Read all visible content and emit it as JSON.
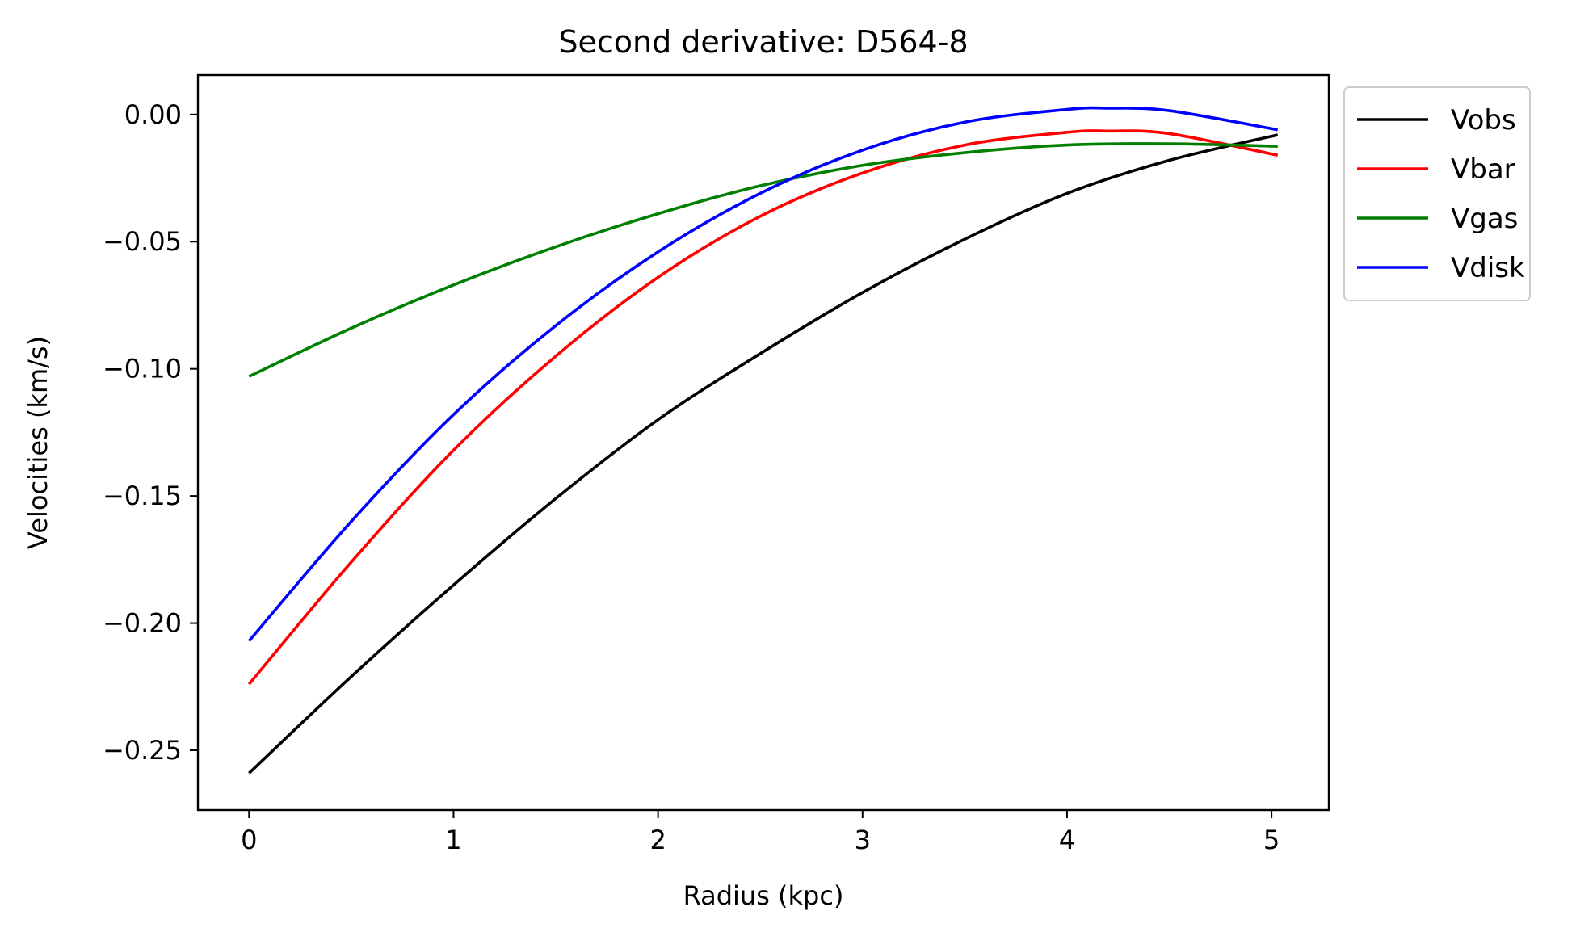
{
  "chart_data": {
    "type": "line",
    "title": "Second derivative: D564-8",
    "xlabel": "Radius (kpc)",
    "ylabel": "Velocities (km/s)",
    "xlim": [
      -0.25,
      5.28
    ],
    "ylim": [
      -0.2735,
      0.0155
    ],
    "xticks": [
      0,
      1,
      2,
      3,
      4,
      5
    ],
    "xtick_labels": [
      "0",
      "1",
      "2",
      "3",
      "4",
      "5"
    ],
    "yticks": [
      0.0,
      -0.05,
      -0.1,
      -0.15,
      -0.2,
      -0.25
    ],
    "ytick_labels": [
      "0.00",
      "−0.05",
      "−0.10",
      "−0.15",
      "−0.20",
      "−0.25"
    ],
    "grid": false,
    "legend_position": "outside upper right",
    "series": [
      {
        "name": "Vobs",
        "color": "#000000",
        "x": [
          0,
          0.5,
          1.0,
          1.5,
          2.0,
          2.5,
          3.0,
          3.5,
          4.0,
          4.5,
          5.03
        ],
        "y": [
          -0.259,
          -0.221,
          -0.185,
          -0.151,
          -0.12,
          -0.094,
          -0.07,
          -0.049,
          -0.031,
          -0.018,
          -0.008
        ]
      },
      {
        "name": "Vbar",
        "color": "#ff0000",
        "x": [
          0,
          0.5,
          1.0,
          1.5,
          2.0,
          2.5,
          3.0,
          3.5,
          4.0,
          4.2,
          4.5,
          5.03
        ],
        "y": [
          -0.224,
          -0.176,
          -0.132,
          -0.095,
          -0.064,
          -0.04,
          -0.023,
          -0.012,
          -0.007,
          -0.0065,
          -0.0075,
          -0.016
        ]
      },
      {
        "name": "Vgas",
        "color": "#008000",
        "x": [
          0,
          0.5,
          1.0,
          1.5,
          2.0,
          2.5,
          3.0,
          3.5,
          4.0,
          4.5,
          5.03
        ],
        "y": [
          -0.103,
          -0.084,
          -0.067,
          -0.052,
          -0.039,
          -0.028,
          -0.02,
          -0.015,
          -0.012,
          -0.0115,
          -0.0125
        ]
      },
      {
        "name": "Vdisk",
        "color": "#0000ff",
        "x": [
          0,
          0.5,
          1.0,
          1.5,
          2.0,
          2.5,
          3.0,
          3.5,
          4.0,
          4.2,
          4.5,
          5.03
        ],
        "y": [
          -0.207,
          -0.16,
          -0.118,
          -0.083,
          -0.054,
          -0.031,
          -0.014,
          -0.003,
          0.002,
          0.0025,
          0.0015,
          -0.006
        ]
      }
    ]
  }
}
